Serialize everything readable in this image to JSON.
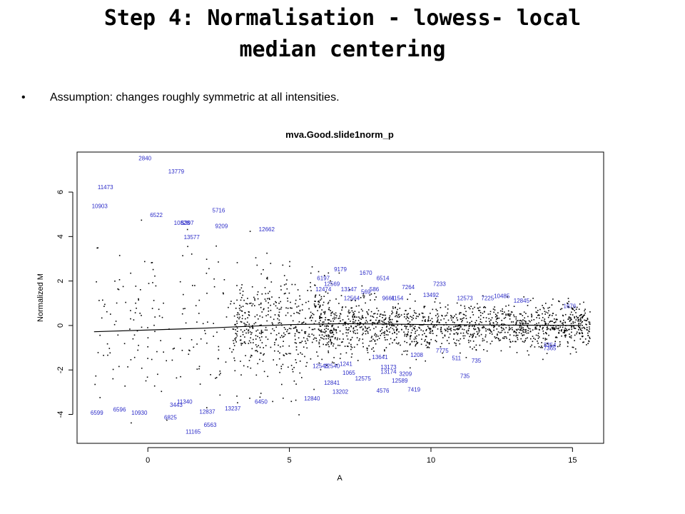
{
  "slide": {
    "title_line1": "Step 4: Normalisation - lowess- local",
    "title_line2": "median centering",
    "bullet_symbol": "•",
    "bullet": "Assumption: changes roughly symmetric at all intensities."
  },
  "chart_data": {
    "type": "scatter",
    "title": "mva.Good.slide1norm_p",
    "xlabel": "A",
    "ylabel": "Normalized M",
    "xlim": [
      -2.5,
      16.1
    ],
    "ylim": [
      -5.3,
      7.8
    ],
    "xticks": [
      0,
      5,
      10,
      15
    ],
    "yticks": [
      -4,
      -2,
      0,
      2,
      4,
      6
    ],
    "grid": false,
    "colors": {
      "points": "#000000",
      "labels": "#2b2bc8",
      "fit_line": "#000000"
    },
    "fit_line": {
      "name": "",
      "x": [
        -1.9,
        2,
        5,
        7,
        10,
        12.5,
        15.3
      ],
      "y": [
        -0.28,
        -0.12,
        0.04,
        0.08,
        0.04,
        0.02,
        0.0
      ]
    },
    "labeled_points": [
      {
        "label": "2840",
        "x": -0.1,
        "y": 7.5
      },
      {
        "label": "13779",
        "x": 1.0,
        "y": 6.9
      },
      {
        "label": "11473",
        "x": -1.5,
        "y": 6.2
      },
      {
        "label": "10903",
        "x": -1.7,
        "y": 5.35
      },
      {
        "label": "5716",
        "x": 2.5,
        "y": 5.15
      },
      {
        "label": "6522",
        "x": 0.3,
        "y": 4.95
      },
      {
        "label": "10828",
        "x": 1.2,
        "y": 4.6
      },
      {
        "label": "5397",
        "x": 1.4,
        "y": 4.6
      },
      {
        "label": "9209",
        "x": 2.6,
        "y": 4.45
      },
      {
        "label": "12662",
        "x": 4.2,
        "y": 4.3
      },
      {
        "label": "13577",
        "x": 1.55,
        "y": 3.95
      },
      {
        "label": "9179",
        "x": 6.8,
        "y": 2.5
      },
      {
        "label": "1670",
        "x": 7.7,
        "y": 2.35
      },
      {
        "label": "6197",
        "x": 6.2,
        "y": 2.1
      },
      {
        "label": "6514",
        "x": 8.3,
        "y": 2.1
      },
      {
        "label": "7233",
        "x": 10.3,
        "y": 1.85
      },
      {
        "label": "12569",
        "x": 6.5,
        "y": 1.85
      },
      {
        "label": "12474",
        "x": 6.2,
        "y": 1.6
      },
      {
        "label": "7264",
        "x": 9.2,
        "y": 1.7
      },
      {
        "label": "13147",
        "x": 7.1,
        "y": 1.6
      },
      {
        "label": "569",
        "x": 7.7,
        "y": 1.5
      },
      {
        "label": "586",
        "x": 8.0,
        "y": 1.6
      },
      {
        "label": "13492",
        "x": 10.0,
        "y": 1.35
      },
      {
        "label": "12573",
        "x": 11.2,
        "y": 1.2
      },
      {
        "label": "10485",
        "x": 12.5,
        "y": 1.3
      },
      {
        "label": "12845",
        "x": 13.2,
        "y": 1.1
      },
      {
        "label": "1676",
        "x": 14.9,
        "y": 0.85
      },
      {
        "label": "12564",
        "x": 7.2,
        "y": 1.2
      },
      {
        "label": "9661",
        "x": 8.5,
        "y": 1.2
      },
      {
        "label": "4154",
        "x": 8.8,
        "y": 1.2
      },
      {
        "label": "7225",
        "x": 12.0,
        "y": 1.2
      },
      {
        "label": "3354",
        "x": 14.2,
        "y": -0.9
      },
      {
        "label": "7365",
        "x": 14.2,
        "y": -1.05
      },
      {
        "label": "7775",
        "x": 10.4,
        "y": -1.15
      },
      {
        "label": "511",
        "x": 10.9,
        "y": -1.5
      },
      {
        "label": "735",
        "x": 11.6,
        "y": -1.6
      },
      {
        "label": "1208",
        "x": 9.5,
        "y": -1.35
      },
      {
        "label": "13641",
        "x": 8.2,
        "y": -1.45
      },
      {
        "label": "1241",
        "x": 7.0,
        "y": -1.75
      },
      {
        "label": "12543",
        "x": 6.1,
        "y": -1.85
      },
      {
        "label": "12540",
        "x": 6.5,
        "y": -1.85
      },
      {
        "label": "1065",
        "x": 7.1,
        "y": -2.15
      },
      {
        "label": "13173",
        "x": 8.5,
        "y": -1.9
      },
      {
        "label": "13174",
        "x": 8.5,
        "y": -2.1
      },
      {
        "label": "12841",
        "x": 6.5,
        "y": -2.6
      },
      {
        "label": "12575",
        "x": 7.6,
        "y": -2.4
      },
      {
        "label": "3209",
        "x": 9.1,
        "y": -2.2
      },
      {
        "label": "12589",
        "x": 8.9,
        "y": -2.5
      },
      {
        "label": "735",
        "x": 11.2,
        "y": -2.3
      },
      {
        "label": "7419",
        "x": 9.4,
        "y": -2.9
      },
      {
        "label": "4576",
        "x": 8.3,
        "y": -2.95
      },
      {
        "label": "13202",
        "x": 6.8,
        "y": -3.0
      },
      {
        "label": "12840",
        "x": 5.8,
        "y": -3.3
      },
      {
        "label": "6450",
        "x": 4.0,
        "y": -3.45
      },
      {
        "label": "11340",
        "x": 1.3,
        "y": -3.45
      },
      {
        "label": "3443",
        "x": 1.0,
        "y": -3.6
      },
      {
        "label": "13237",
        "x": 3.0,
        "y": -3.75
      },
      {
        "label": "6596",
        "x": -1.0,
        "y": -3.8
      },
      {
        "label": "6599",
        "x": -1.8,
        "y": -3.95
      },
      {
        "label": "10930",
        "x": -0.3,
        "y": -3.95
      },
      {
        "label": "12837",
        "x": 2.1,
        "y": -3.9
      },
      {
        "label": "6825",
        "x": 0.8,
        "y": -4.15
      },
      {
        "label": "6563",
        "x": 2.2,
        "y": -4.5
      },
      {
        "label": "11165",
        "x": 1.6,
        "y": -4.8
      }
    ]
  }
}
